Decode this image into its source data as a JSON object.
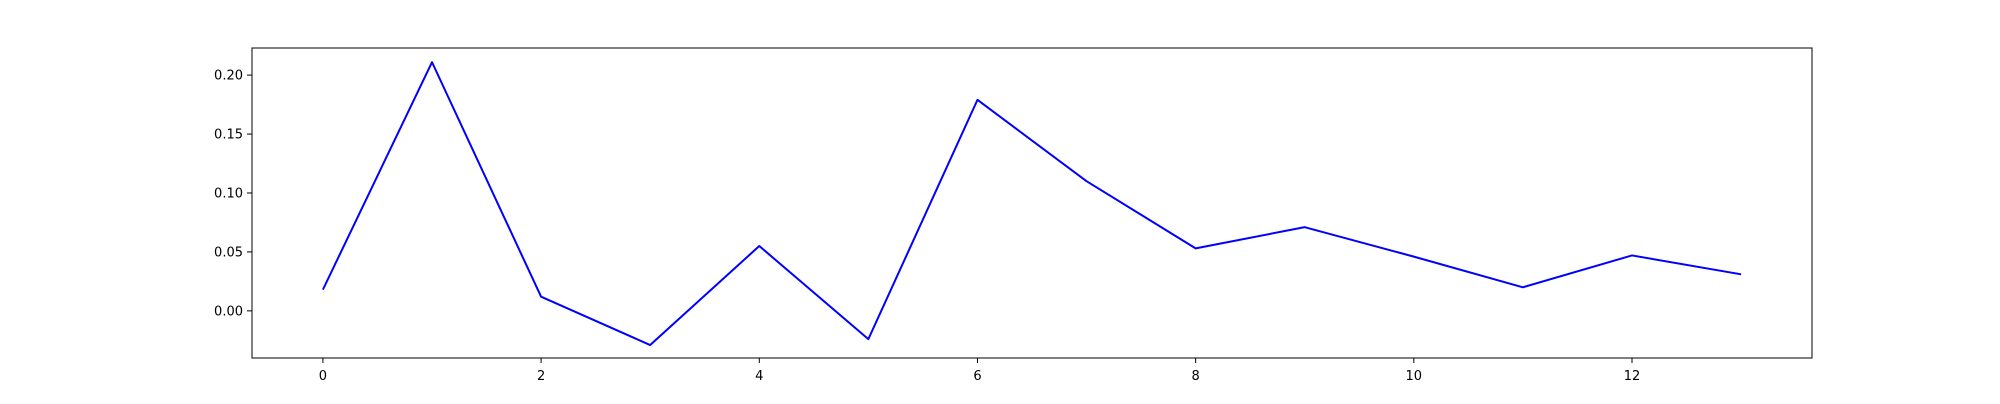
{
  "chart_data": {
    "type": "line",
    "title": "",
    "xlabel": "",
    "ylabel": "",
    "x": [
      0,
      1,
      2,
      3,
      4,
      5,
      6,
      7,
      8,
      9,
      10,
      11,
      12,
      13
    ],
    "series": [
      {
        "color": "#0000ff",
        "values": [
          0.018,
          0.211,
          0.012,
          -0.029,
          0.055,
          -0.024,
          0.179,
          0.11,
          0.053,
          0.071,
          0.046,
          0.02,
          0.047,
          0.031
        ]
      }
    ],
    "xlim": [
      -0.65,
      13.65
    ],
    "ylim": [
      -0.04,
      0.223
    ],
    "xticks": [
      0,
      2,
      4,
      6,
      8,
      10,
      12
    ],
    "xtick_labels": [
      "0",
      "2",
      "4",
      "6",
      "8",
      "10",
      "12"
    ],
    "yticks": [
      0.0,
      0.05,
      0.1,
      0.15,
      0.2
    ],
    "ytick_labels": [
      "0.00",
      "0.05",
      "0.10",
      "0.15",
      "0.20"
    ],
    "grid": false,
    "legend": "none"
  }
}
